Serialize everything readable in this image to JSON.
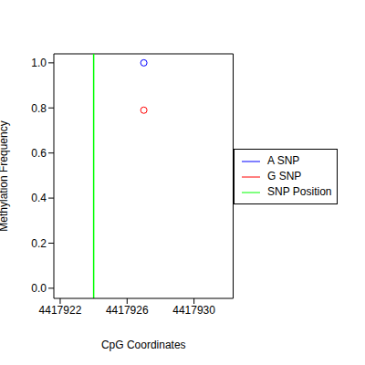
{
  "chart_data": {
    "type": "scatter",
    "x_label": "CpG Coordinates",
    "y_label": "Methylation Frequency",
    "xlim": [
      4417921.62,
      4417932.34
    ],
    "xticks": [
      4417922,
      4417926,
      4417930
    ],
    "ylim": [
      -0.045,
      1.04
    ],
    "yticks": [
      {
        "value": 0,
        "label": "0.0"
      },
      0.2,
      0.4,
      0.6,
      0.8,
      {
        "value": 1,
        "label": "1.0"
      }
    ],
    "legend": "right",
    "marker": "circle",
    "series": [
      {
        "name": "A SNP",
        "color": "#0000ff",
        "x": [
          4417927
        ],
        "values": [
          1.0
        ]
      },
      {
        "name": "G SNP",
        "color": "#ff0000",
        "x": [
          4417927
        ],
        "values": [
          0.79
        ]
      },
      {
        "name": "SNP Position",
        "type": "vline",
        "color": "#00ff00",
        "x": [
          4417924
        ]
      }
    ]
  }
}
